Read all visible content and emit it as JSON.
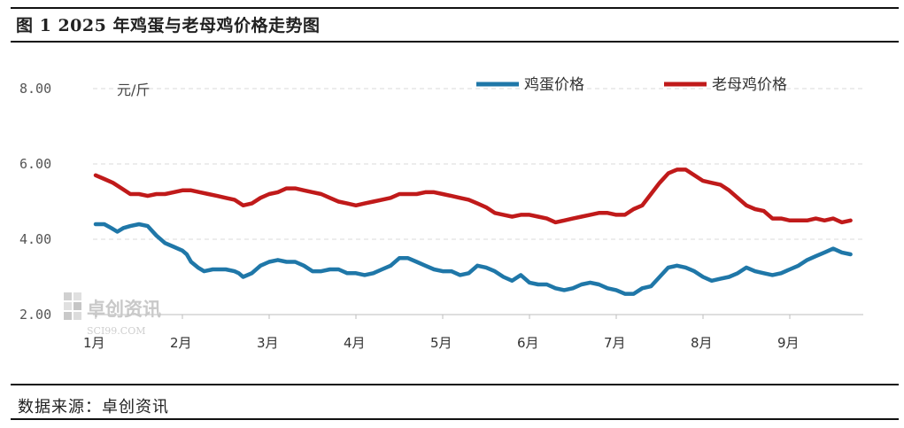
{
  "page_title": "图 1  2025 年鸡蛋与老母鸡价格走势图",
  "source_note": "数据来源：卓创资讯",
  "watermark": {
    "name": "卓创资讯",
    "site": "SCI99.COM"
  },
  "colors": {
    "egg": "#1f77a8",
    "hen": "#c01a1a",
    "grid": "#d9d9d9",
    "axis": "#bdbdbd"
  },
  "chart_data": {
    "type": "line",
    "title": "2025 年鸡蛋与老母鸡价格走势图",
    "ylabel": "元/斤",
    "xlabel": "",
    "ylim": [
      2.0,
      8.0
    ],
    "yticks": [
      "2.00",
      "4.00",
      "6.00",
      "8.00"
    ],
    "ytick_values": [
      2.0,
      4.0,
      6.0,
      8.0
    ],
    "x_months": [
      "1月",
      "2月",
      "3月",
      "4月",
      "5月",
      "6月",
      "7月",
      "8月",
      "9月"
    ],
    "xlim": [
      0,
      8.8
    ],
    "legend": {
      "position": "top-right"
    },
    "grid": "horizontal-dashed",
    "series": [
      {
        "name": "鸡蛋价格",
        "color": "#1f77a8",
        "points": [
          [
            0.0,
            4.4
          ],
          [
            0.1,
            4.4
          ],
          [
            0.18,
            4.3
          ],
          [
            0.25,
            4.2
          ],
          [
            0.32,
            4.3
          ],
          [
            0.4,
            4.35
          ],
          [
            0.5,
            4.4
          ],
          [
            0.6,
            4.35
          ],
          [
            0.7,
            4.1
          ],
          [
            0.8,
            3.9
          ],
          [
            0.9,
            3.8
          ],
          [
            1.0,
            3.7
          ],
          [
            1.05,
            3.6
          ],
          [
            1.1,
            3.4
          ],
          [
            1.18,
            3.25
          ],
          [
            1.25,
            3.15
          ],
          [
            1.35,
            3.2
          ],
          [
            1.5,
            3.2
          ],
          [
            1.6,
            3.15
          ],
          [
            1.65,
            3.1
          ],
          [
            1.7,
            3.0
          ],
          [
            1.8,
            3.1
          ],
          [
            1.9,
            3.3
          ],
          [
            2.0,
            3.4
          ],
          [
            2.1,
            3.45
          ],
          [
            2.2,
            3.4
          ],
          [
            2.3,
            3.4
          ],
          [
            2.4,
            3.3
          ],
          [
            2.5,
            3.15
          ],
          [
            2.6,
            3.15
          ],
          [
            2.7,
            3.2
          ],
          [
            2.8,
            3.2
          ],
          [
            2.9,
            3.1
          ],
          [
            3.0,
            3.1
          ],
          [
            3.1,
            3.05
          ],
          [
            3.2,
            3.1
          ],
          [
            3.3,
            3.2
          ],
          [
            3.4,
            3.3
          ],
          [
            3.5,
            3.5
          ],
          [
            3.6,
            3.5
          ],
          [
            3.7,
            3.4
          ],
          [
            3.8,
            3.3
          ],
          [
            3.9,
            3.2
          ],
          [
            4.0,
            3.15
          ],
          [
            4.1,
            3.15
          ],
          [
            4.2,
            3.05
          ],
          [
            4.3,
            3.1
          ],
          [
            4.4,
            3.3
          ],
          [
            4.5,
            3.25
          ],
          [
            4.6,
            3.15
          ],
          [
            4.7,
            3.0
          ],
          [
            4.8,
            2.9
          ],
          [
            4.9,
            3.05
          ],
          [
            5.0,
            2.85
          ],
          [
            5.1,
            2.8
          ],
          [
            5.2,
            2.8
          ],
          [
            5.3,
            2.7
          ],
          [
            5.4,
            2.65
          ],
          [
            5.5,
            2.7
          ],
          [
            5.6,
            2.8
          ],
          [
            5.7,
            2.85
          ],
          [
            5.8,
            2.8
          ],
          [
            5.9,
            2.7
          ],
          [
            6.0,
            2.65
          ],
          [
            6.1,
            2.55
          ],
          [
            6.2,
            2.55
          ],
          [
            6.3,
            2.7
          ],
          [
            6.4,
            2.75
          ],
          [
            6.5,
            3.0
          ],
          [
            6.6,
            3.25
          ],
          [
            6.7,
            3.3
          ],
          [
            6.8,
            3.25
          ],
          [
            6.9,
            3.15
          ],
          [
            7.0,
            3.0
          ],
          [
            7.1,
            2.9
          ],
          [
            7.2,
            2.95
          ],
          [
            7.3,
            3.0
          ],
          [
            7.4,
            3.1
          ],
          [
            7.5,
            3.25
          ],
          [
            7.6,
            3.15
          ],
          [
            7.7,
            3.1
          ],
          [
            7.8,
            3.05
          ],
          [
            7.9,
            3.1
          ],
          [
            8.0,
            3.2
          ],
          [
            8.1,
            3.3
          ],
          [
            8.2,
            3.45
          ],
          [
            8.3,
            3.55
          ],
          [
            8.4,
            3.65
          ],
          [
            8.5,
            3.75
          ],
          [
            8.6,
            3.65
          ],
          [
            8.7,
            3.6
          ]
        ]
      },
      {
        "name": "老母鸡价格",
        "color": "#c01a1a",
        "points": [
          [
            0.0,
            5.7
          ],
          [
            0.1,
            5.6
          ],
          [
            0.2,
            5.5
          ],
          [
            0.3,
            5.35
          ],
          [
            0.4,
            5.2
          ],
          [
            0.5,
            5.2
          ],
          [
            0.6,
            5.15
          ],
          [
            0.7,
            5.2
          ],
          [
            0.8,
            5.2
          ],
          [
            0.9,
            5.25
          ],
          [
            1.0,
            5.3
          ],
          [
            1.1,
            5.3
          ],
          [
            1.2,
            5.25
          ],
          [
            1.3,
            5.2
          ],
          [
            1.4,
            5.15
          ],
          [
            1.5,
            5.1
          ],
          [
            1.6,
            5.05
          ],
          [
            1.7,
            4.9
          ],
          [
            1.8,
            4.95
          ],
          [
            1.9,
            5.1
          ],
          [
            2.0,
            5.2
          ],
          [
            2.1,
            5.25
          ],
          [
            2.2,
            5.35
          ],
          [
            2.3,
            5.35
          ],
          [
            2.4,
            5.3
          ],
          [
            2.5,
            5.25
          ],
          [
            2.6,
            5.2
          ],
          [
            2.7,
            5.1
          ],
          [
            2.8,
            5.0
          ],
          [
            2.9,
            4.95
          ],
          [
            3.0,
            4.9
          ],
          [
            3.1,
            4.95
          ],
          [
            3.2,
            5.0
          ],
          [
            3.3,
            5.05
          ],
          [
            3.4,
            5.1
          ],
          [
            3.5,
            5.2
          ],
          [
            3.6,
            5.2
          ],
          [
            3.7,
            5.2
          ],
          [
            3.8,
            5.25
          ],
          [
            3.9,
            5.25
          ],
          [
            4.0,
            5.2
          ],
          [
            4.1,
            5.15
          ],
          [
            4.2,
            5.1
          ],
          [
            4.3,
            5.05
          ],
          [
            4.4,
            4.95
          ],
          [
            4.5,
            4.85
          ],
          [
            4.6,
            4.7
          ],
          [
            4.7,
            4.65
          ],
          [
            4.8,
            4.6
          ],
          [
            4.9,
            4.65
          ],
          [
            5.0,
            4.65
          ],
          [
            5.1,
            4.6
          ],
          [
            5.2,
            4.55
          ],
          [
            5.3,
            4.45
          ],
          [
            5.4,
            4.5
          ],
          [
            5.5,
            4.55
          ],
          [
            5.6,
            4.6
          ],
          [
            5.7,
            4.65
          ],
          [
            5.8,
            4.7
          ],
          [
            5.9,
            4.7
          ],
          [
            6.0,
            4.65
          ],
          [
            6.1,
            4.65
          ],
          [
            6.2,
            4.8
          ],
          [
            6.3,
            4.9
          ],
          [
            6.4,
            5.2
          ],
          [
            6.5,
            5.5
          ],
          [
            6.6,
            5.75
          ],
          [
            6.7,
            5.85
          ],
          [
            6.8,
            5.85
          ],
          [
            6.9,
            5.7
          ],
          [
            7.0,
            5.55
          ],
          [
            7.1,
            5.5
          ],
          [
            7.2,
            5.45
          ],
          [
            7.3,
            5.3
          ],
          [
            7.4,
            5.1
          ],
          [
            7.5,
            4.9
          ],
          [
            7.6,
            4.8
          ],
          [
            7.7,
            4.75
          ],
          [
            7.8,
            4.55
          ],
          [
            7.9,
            4.55
          ],
          [
            8.0,
            4.5
          ],
          [
            8.1,
            4.5
          ],
          [
            8.2,
            4.5
          ],
          [
            8.3,
            4.55
          ],
          [
            8.4,
            4.5
          ],
          [
            8.5,
            4.55
          ],
          [
            8.6,
            4.45
          ],
          [
            8.7,
            4.5
          ]
        ]
      }
    ]
  }
}
